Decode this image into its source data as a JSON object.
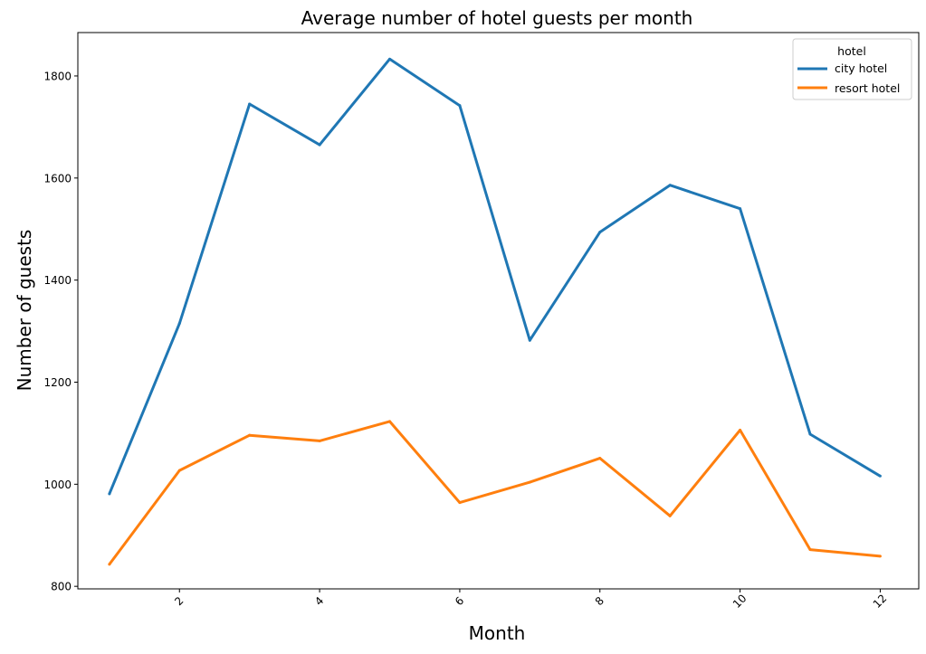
{
  "chart_data": {
    "type": "line",
    "title": "Average number of hotel guests per month",
    "xlabel": "Month",
    "ylabel": "Number of guests",
    "xlim": [
      0.55,
      12.55
    ],
    "ylim": [
      795,
      1885
    ],
    "xticks": [
      2,
      4,
      6,
      8,
      10,
      12
    ],
    "yticks": [
      800,
      1000,
      1200,
      1400,
      1600,
      1800
    ],
    "x_tick_rotation_deg": 45,
    "grid": false,
    "legend": {
      "title": "hotel",
      "position": "top-right"
    },
    "x": [
      1,
      2,
      3,
      4,
      5,
      6,
      7,
      8,
      9,
      10,
      11,
      12
    ],
    "series": [
      {
        "name": "city hotel",
        "color": "#1f77b4",
        "values": [
          981,
          1315,
          1745,
          1665,
          1833,
          1742,
          1282,
          1494,
          1586,
          1540,
          1098,
          1016
        ]
      },
      {
        "name": "resort hotel",
        "color": "#ff7f0e",
        "values": [
          843,
          1027,
          1096,
          1085,
          1123,
          964,
          1004,
          1051,
          938,
          1106,
          872,
          859
        ]
      }
    ]
  }
}
